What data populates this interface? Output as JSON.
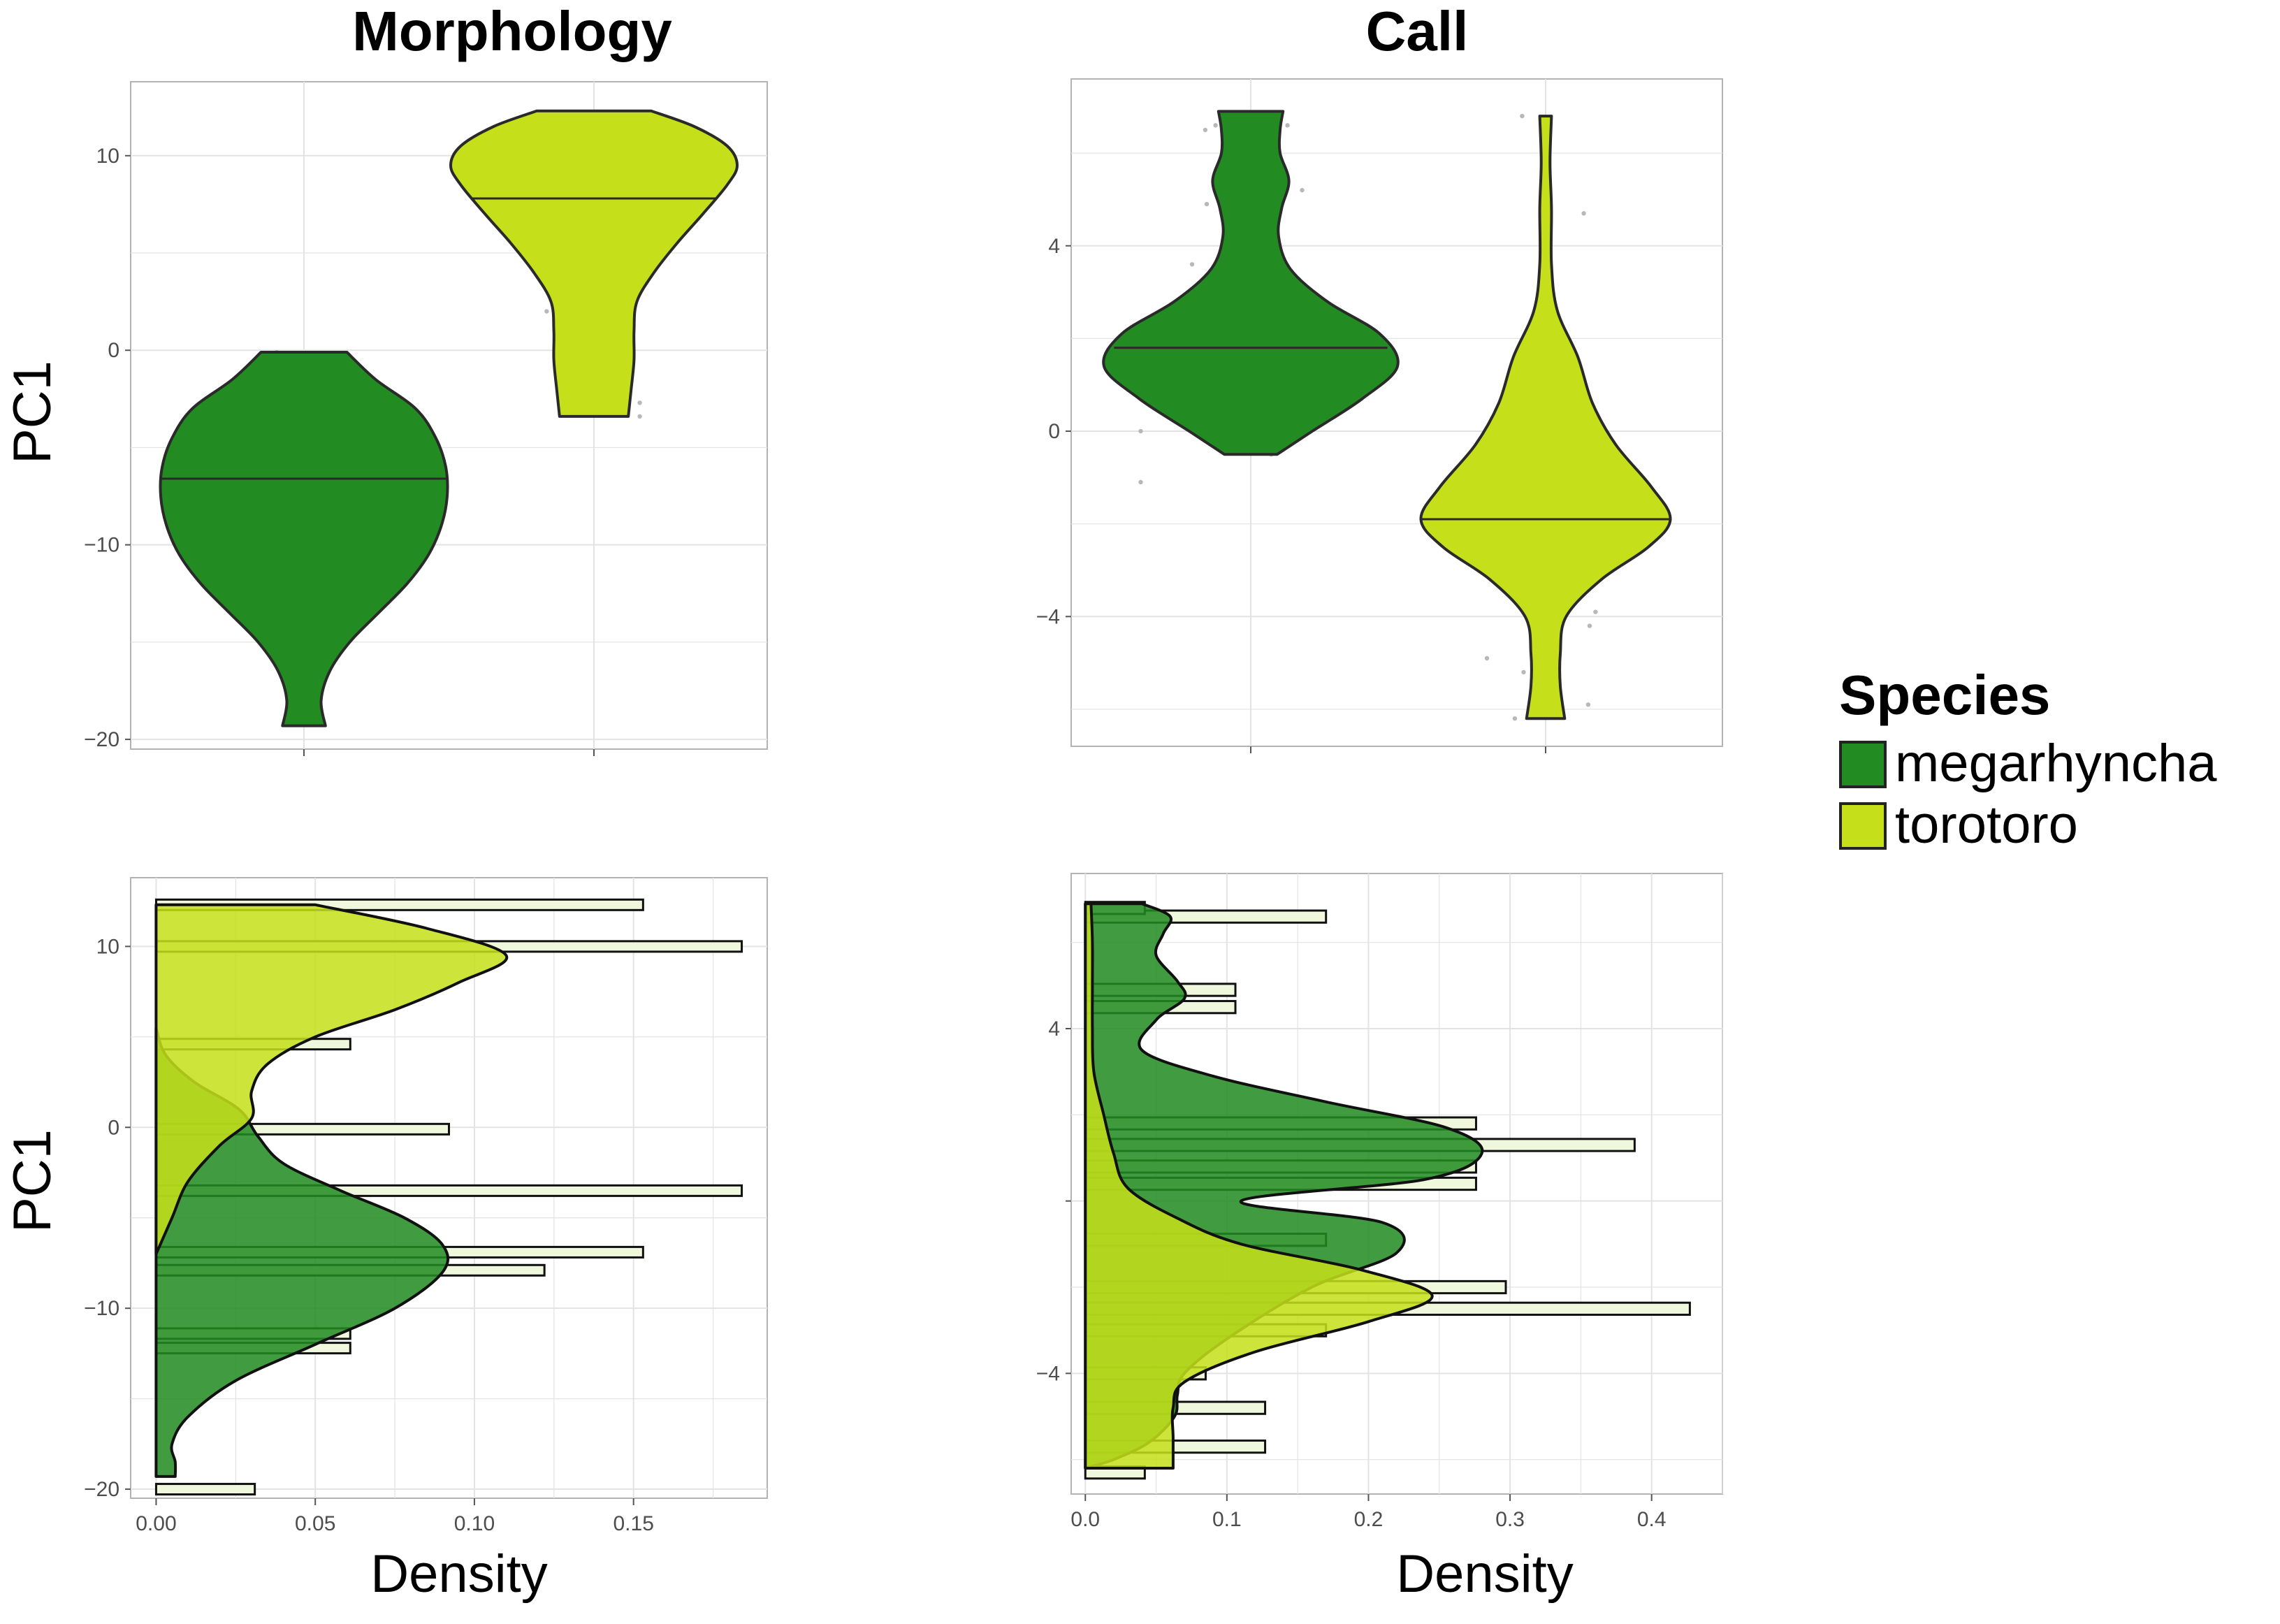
{
  "chart_data": [
    {
      "type": "violin",
      "title": "Morphology",
      "ylabel": "PC1",
      "ylim": [
        -20.5,
        13.8
      ],
      "yticks": [
        -20,
        -10,
        0,
        10
      ],
      "yticks_text": [
        "−20",
        "−10",
        "0",
        "10"
      ],
      "series": [
        {
          "name": "megarhyncha",
          "color": "#228b22",
          "median": -6.6,
          "ymin": -19.3,
          "ymax": -0.1,
          "profile": [
            [
              -19.3,
              0.15
            ],
            [
              -18,
              0.12
            ],
            [
              -16.5,
              0.18
            ],
            [
              -15,
              0.32
            ],
            [
              -13.5,
              0.52
            ],
            [
              -12,
              0.72
            ],
            [
              -10.5,
              0.87
            ],
            [
              -9,
              0.96
            ],
            [
              -7.5,
              1.0
            ],
            [
              -6,
              0.99
            ],
            [
              -4.5,
              0.92
            ],
            [
              -3,
              0.78
            ],
            [
              -1.5,
              0.5
            ],
            [
              -0.1,
              0.3
            ]
          ],
          "points": [
            [
              -9.1,
              -0.19
            ],
            [
              -4,
              -0.18
            ],
            [
              -1.1,
              -0.16
            ],
            [
              -0.1,
              -0.19
            ],
            [
              -12.5,
              0.26
            ],
            [
              -11.6,
              0.37
            ],
            [
              -3.2,
              0.32
            ]
          ]
        },
        {
          "name": "torotoro",
          "color": "#c5e01a",
          "median": 7.8,
          "ymin": -3.4,
          "ymax": 12.3,
          "profile": [
            [
              -3.4,
              0.24
            ],
            [
              -2,
              0.26
            ],
            [
              -0.5,
              0.28
            ],
            [
              1,
              0.28
            ],
            [
              2.5,
              0.3
            ],
            [
              4,
              0.42
            ],
            [
              5.5,
              0.58
            ],
            [
              7,
              0.76
            ],
            [
              8.5,
              0.93
            ],
            [
              9.5,
              1.0
            ],
            [
              10.5,
              0.93
            ],
            [
              11.5,
              0.7
            ],
            [
              12.3,
              0.4
            ]
          ],
          "points": [
            [
              5.1,
              -0.39
            ],
            [
              2,
              -0.33
            ],
            [
              0.5,
              -0.18
            ],
            [
              12,
              -0.32
            ],
            [
              4.3,
              0.3
            ],
            [
              -2.7,
              0.32
            ],
            [
              -3.4,
              0.32
            ]
          ]
        }
      ]
    },
    {
      "type": "violin",
      "title": "Call",
      "ylabel": "",
      "ylim": [
        -6.8,
        7.6
      ],
      "yticks": [
        -4,
        0,
        4
      ],
      "yticks_text": [
        "−4",
        "0",
        "4"
      ],
      "series": [
        {
          "name": "megarhyncha",
          "color": "#228b22",
          "median": 1.8,
          "ymin": -0.5,
          "ymax": 6.9,
          "profile": [
            [
              -0.5,
              0.18
            ],
            [
              0,
              0.42
            ],
            [
              0.7,
              0.76
            ],
            [
              1.4,
              1.0
            ],
            [
              2.1,
              0.88
            ],
            [
              2.8,
              0.52
            ],
            [
              3.5,
              0.27
            ],
            [
              4.2,
              0.19
            ],
            [
              4.8,
              0.21
            ],
            [
              5.4,
              0.26
            ],
            [
              6,
              0.2
            ],
            [
              6.5,
              0.2
            ],
            [
              6.9,
              0.22
            ]
          ],
          "points": [
            [
              6.5,
              -0.31
            ],
            [
              6.6,
              -0.24
            ],
            [
              4.9,
              -0.3
            ],
            [
              4.4,
              -0.15
            ],
            [
              3.6,
              -0.4
            ],
            [
              2.8,
              -0.35
            ],
            [
              2.3,
              -0.33
            ],
            [
              -0.5,
              0.14
            ],
            [
              6.6,
              0.25
            ],
            [
              5.2,
              0.35
            ],
            [
              0,
              -0.75
            ],
            [
              -1.1,
              -0.75
            ]
          ]
        },
        {
          "name": "torotoro",
          "color": "#c5e01a",
          "median": -1.9,
          "ymin": -6.2,
          "ymax": 6.8,
          "profile": [
            [
              -6.2,
              0.13
            ],
            [
              -5.5,
              0.1
            ],
            [
              -4.8,
              0.1
            ],
            [
              -4,
              0.14
            ],
            [
              -3.2,
              0.38
            ],
            [
              -2.5,
              0.7
            ],
            [
              -1.9,
              0.85
            ],
            [
              -1.2,
              0.72
            ],
            [
              -0.3,
              0.48
            ],
            [
              0.6,
              0.32
            ],
            [
              1.6,
              0.22
            ],
            [
              2.6,
              0.08
            ],
            [
              3.6,
              0.04
            ],
            [
              4.8,
              0.04
            ],
            [
              5.8,
              0.03
            ],
            [
              6.8,
              0.04
            ]
          ],
          "points": [
            [
              0.9,
              -0.27
            ],
            [
              0.5,
              -0.29
            ],
            [
              0.3,
              -0.31
            ],
            [
              -1.2,
              -0.4
            ],
            [
              -2.3,
              -0.43
            ],
            [
              -4.9,
              -0.4
            ],
            [
              -5.2,
              -0.15
            ],
            [
              -6.2,
              -0.21
            ],
            [
              6.8,
              -0.16
            ],
            [
              4.7,
              0.26
            ],
            [
              -3.2,
              0.29
            ],
            [
              -3.9,
              0.34
            ],
            [
              -4.2,
              0.3
            ],
            [
              -5.9,
              0.29
            ]
          ]
        }
      ]
    },
    {
      "type": "density_histogram",
      "title": "",
      "xlabel": "Density",
      "ylabel": "PC1",
      "xlim": [
        -0.008,
        0.192
      ],
      "ylim": [
        -20.5,
        13.8
      ],
      "xticks": [
        0,
        0.05,
        0.1,
        0.15
      ],
      "xticks_text": [
        "0.00",
        "0.05",
        "0.10",
        "0.15"
      ],
      "yticks": [
        -20,
        -10,
        0,
        10
      ],
      "yticks_text": [
        "−20",
        "−10",
        "0",
        "10"
      ],
      "bins": [
        {
          "y": -20,
          "v": 0.031
        },
        {
          "y": -12.2,
          "v": 0.061
        },
        {
          "y": -11.4,
          "v": 0.061
        },
        {
          "y": -7.9,
          "v": 0.122
        },
        {
          "y": -6.9,
          "v": 0.153
        },
        {
          "y": -3.5,
          "v": 0.184
        },
        {
          "y": -0.1,
          "v": 0.092
        },
        {
          "y": 4.6,
          "v": 0.061
        },
        {
          "y": 10,
          "v": 0.184
        },
        {
          "y": 12.3,
          "v": 0.153
        }
      ],
      "series": [
        {
          "name": "megarhyncha",
          "color": "#228b22",
          "density": [
            [
              -19.3,
              0.006
            ],
            [
              -18.5,
              0.006
            ],
            [
              -17.5,
              0.005
            ],
            [
              -16,
              0.01
            ],
            [
              -14,
              0.025
            ],
            [
              -12,
              0.05
            ],
            [
              -10,
              0.075
            ],
            [
              -8,
              0.09
            ],
            [
              -6.5,
              0.09
            ],
            [
              -5,
              0.078
            ],
            [
              -3.5,
              0.058
            ],
            [
              -2,
              0.04
            ],
            [
              -0.5,
              0.032
            ],
            [
              1,
              0.026
            ],
            [
              2.5,
              0.012
            ],
            [
              4,
              0.003
            ],
            [
              5.5,
              0
            ]
          ]
        },
        {
          "name": "torotoro",
          "color": "#c5e01a",
          "density": [
            [
              -7,
              0
            ],
            [
              -5,
              0.005
            ],
            [
              -3,
              0.01
            ],
            [
              -1,
              0.02
            ],
            [
              0.5,
              0.03
            ],
            [
              2,
              0.03
            ],
            [
              3.5,
              0.035
            ],
            [
              5,
              0.05
            ],
            [
              6.5,
              0.075
            ],
            [
              8,
              0.095
            ],
            [
              9.5,
              0.11
            ],
            [
              11,
              0.085
            ],
            [
              12.3,
              0.05
            ]
          ]
        }
      ]
    },
    {
      "type": "density_histogram",
      "title": "",
      "xlabel": "Density",
      "ylabel": "",
      "xlim": [
        -0.01,
        0.45
      ],
      "ylim": [
        -6.8,
        7.6
      ],
      "xticks": [
        0,
        0.1,
        0.2,
        0.3,
        0.4
      ],
      "xticks_text": [
        "0.0",
        "0.1",
        "0.2",
        "0.3",
        "0.4"
      ],
      "yticks": [
        -4,
        0,
        4
      ],
      "yticks_text": [
        "−4",
        "",
        "4"
      ],
      "bins": [
        {
          "y": -6.3,
          "v": 0.042
        },
        {
          "y": -5.7,
          "v": 0.127
        },
        {
          "y": -4.8,
          "v": 0.127
        },
        {
          "y": -4.0,
          "v": 0.085
        },
        {
          "y": -3.0,
          "v": 0.17
        },
        {
          "y": -2.5,
          "v": 0.427
        },
        {
          "y": -2.0,
          "v": 0.297
        },
        {
          "y": -0.9,
          "v": 0.17
        },
        {
          "y": 0.4,
          "v": 0.276
        },
        {
          "y": 0.8,
          "v": 0.276
        },
        {
          "y": 1.3,
          "v": 0.388
        },
        {
          "y": 1.8,
          "v": 0.276
        },
        {
          "y": 4.5,
          "v": 0.106
        },
        {
          "y": 4.9,
          "v": 0.106
        },
        {
          "y": 6.6,
          "v": 0.17
        },
        {
          "y": 6.8,
          "v": 0.042
        }
      ],
      "series": [
        {
          "name": "megarhyncha",
          "color": "#228b22",
          "density": [
            [
              -6.2,
              0
            ],
            [
              -6.0,
              0.02
            ],
            [
              -5.6,
              0.045
            ],
            [
              -5,
              0.063
            ],
            [
              -4.5,
              0.065
            ],
            [
              -4,
              0.07
            ],
            [
              -3.2,
              0.1
            ],
            [
              -2,
              0.16
            ],
            [
              -1.2,
              0.22
            ],
            [
              -0.5,
              0.21
            ],
            [
              0,
              0.11
            ],
            [
              0.5,
              0.24
            ],
            [
              1.1,
              0.28
            ],
            [
              1.7,
              0.255
            ],
            [
              2.3,
              0.17
            ],
            [
              2.9,
              0.09
            ],
            [
              3.5,
              0.04
            ],
            [
              4.2,
              0.05
            ],
            [
              4.7,
              0.07
            ],
            [
              5.1,
              0.065
            ],
            [
              5.7,
              0.05
            ],
            [
              6.2,
              0.055
            ],
            [
              6.6,
              0.06
            ],
            [
              6.9,
              0.04
            ]
          ]
        },
        {
          "name": "torotoro",
          "color": "#c5e01a",
          "density": [
            [
              -6.2,
              0.062
            ],
            [
              -5.5,
              0.062
            ],
            [
              -4.8,
              0.062
            ],
            [
              -4.2,
              0.07
            ],
            [
              -3.5,
              0.12
            ],
            [
              -2.8,
              0.2
            ],
            [
              -2.2,
              0.245
            ],
            [
              -1.6,
              0.195
            ],
            [
              -1,
              0.11
            ],
            [
              -0.4,
              0.065
            ],
            [
              0.3,
              0.03
            ],
            [
              1.1,
              0.02
            ],
            [
              2,
              0.013
            ],
            [
              3,
              0.006
            ],
            [
              4,
              0.005
            ],
            [
              5,
              0.005
            ],
            [
              6,
              0.005
            ],
            [
              6.9,
              0.004
            ]
          ]
        }
      ]
    }
  ],
  "legend": {
    "title": "Species",
    "items": [
      {
        "label": "megarhyncha",
        "color": "#228b22"
      },
      {
        "label": "torotoro",
        "color": "#c5e01a"
      }
    ]
  }
}
